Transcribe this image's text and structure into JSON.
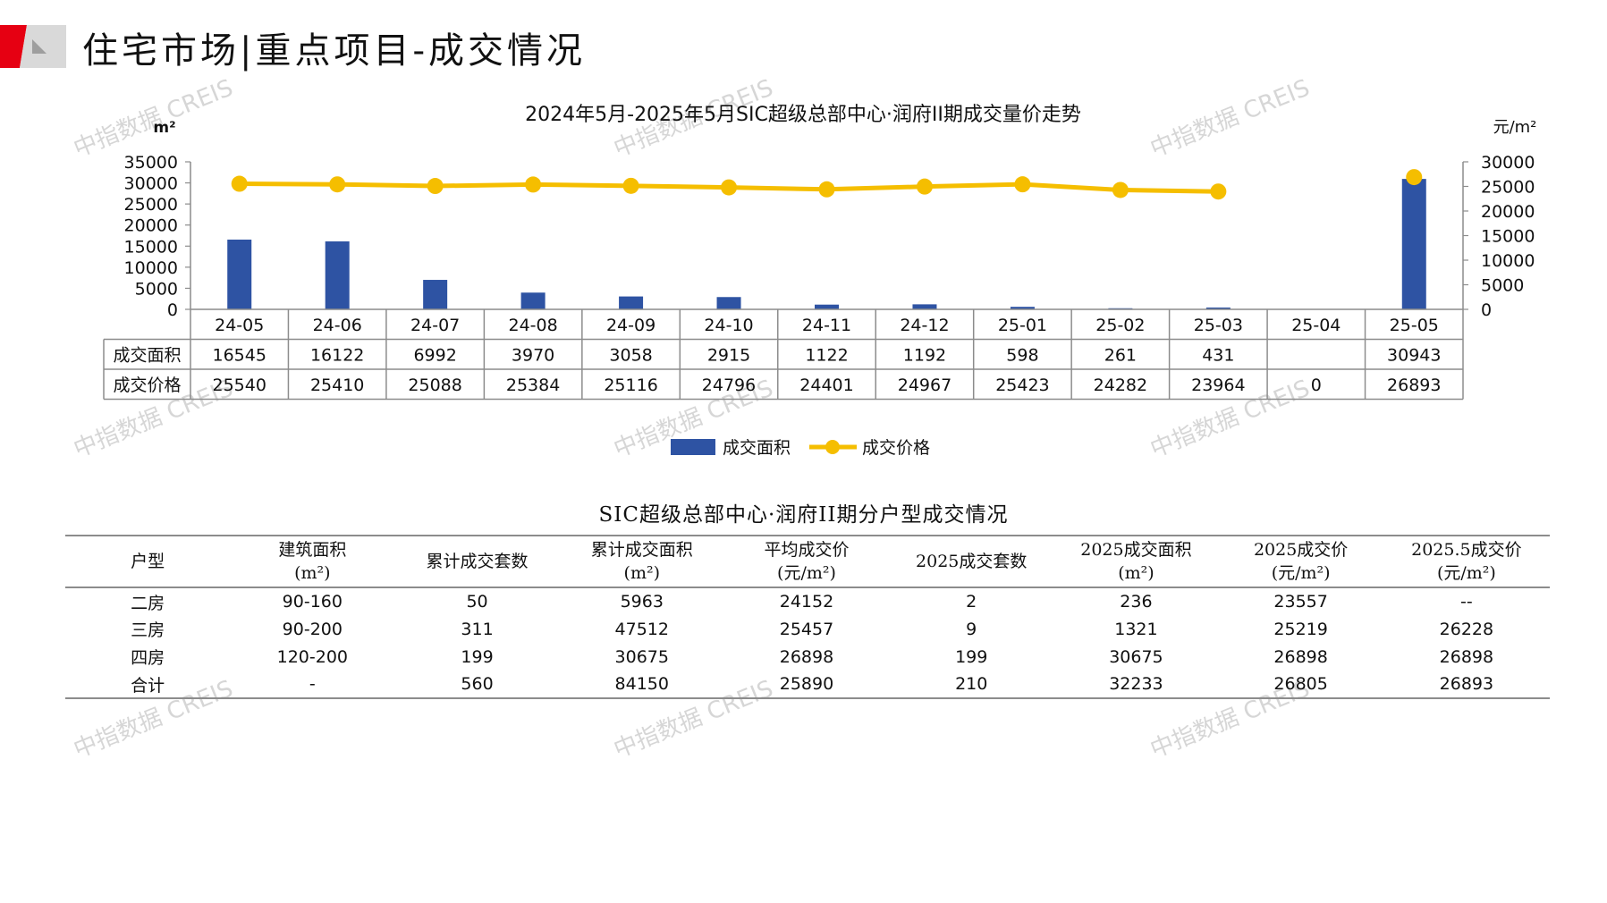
{
  "header": {
    "title": "住宅市场|重点项目-成交情况"
  },
  "watermark_text": "中指数据 CREIS",
  "colors": {
    "bar": "#2E53A3",
    "line": "#F5BE00",
    "header_red": "#E60012",
    "header_gray": "#BDBDBD",
    "grid": "#8C8C8C"
  },
  "chart_data": {
    "type": "bar",
    "title": "2024年5月-2025年5月SIC超级总部中心·润府II期成交量价走势",
    "left_unit": "m²",
    "right_unit": "元/m²",
    "categories": [
      "24-05",
      "24-06",
      "24-07",
      "24-08",
      "24-09",
      "24-10",
      "24-11",
      "24-12",
      "25-01",
      "25-02",
      "25-03",
      "25-04",
      "25-05"
    ],
    "left_ticks": [
      "35000",
      "30000",
      "25000",
      "20000",
      "15000",
      "10000",
      "5000",
      "0"
    ],
    "right_ticks": [
      "30000",
      "25000",
      "20000",
      "15000",
      "10000",
      "5000",
      "0"
    ],
    "ylim_left": [
      0,
      35000
    ],
    "ylim_right": [
      0,
      30000
    ],
    "series": [
      {
        "name": "成交面积",
        "type": "bar",
        "axis": "left",
        "values": [
          16545,
          16122,
          6992,
          3970,
          3058,
          2915,
          1122,
          1192,
          598,
          261,
          431,
          null,
          30943
        ],
        "labels": [
          "16545",
          "16122",
          "6992",
          "3970",
          "3058",
          "2915",
          "1122",
          "1192",
          "598",
          "261",
          "431",
          "",
          "30943"
        ]
      },
      {
        "name": "成交价格",
        "type": "line",
        "axis": "right",
        "values": [
          25540,
          25410,
          25088,
          25384,
          25116,
          24796,
          24401,
          24967,
          25423,
          24282,
          23964,
          null,
          26893
        ],
        "labels": [
          "25540",
          "25410",
          "25088",
          "25384",
          "25116",
          "24796",
          "24401",
          "24967",
          "25423",
          "24282",
          "23964",
          "0",
          "26893"
        ]
      }
    ],
    "legend": [
      "成交面积",
      "成交价格"
    ],
    "legend_position": "bottom"
  },
  "table": {
    "title": "SIC超级总部中心·润府II期分户型成交情况",
    "headers": [
      [
        "户型"
      ],
      [
        "建筑面积",
        "(m²)"
      ],
      [
        "累计成交套数"
      ],
      [
        "累计成交面积",
        "(m²)"
      ],
      [
        "平均成交价",
        "(元/m²)"
      ],
      [
        "2025成交套数"
      ],
      [
        "2025成交面积",
        "(m²)"
      ],
      [
        "2025成交价",
        "(元/m²)"
      ],
      [
        "2025.5成交价",
        "(元/m²)"
      ]
    ],
    "rows": [
      [
        "二房",
        "90-160",
        "50",
        "5963",
        "24152",
        "2",
        "236",
        "23557",
        "--"
      ],
      [
        "三房",
        "90-200",
        "311",
        "47512",
        "25457",
        "9",
        "1321",
        "25219",
        "26228"
      ],
      [
        "四房",
        "120-200",
        "199",
        "30675",
        "26898",
        "199",
        "30675",
        "26898",
        "26898"
      ],
      [
        "合计",
        "-",
        "560",
        "84150",
        "25890",
        "210",
        "32233",
        "26805",
        "26893"
      ]
    ]
  }
}
